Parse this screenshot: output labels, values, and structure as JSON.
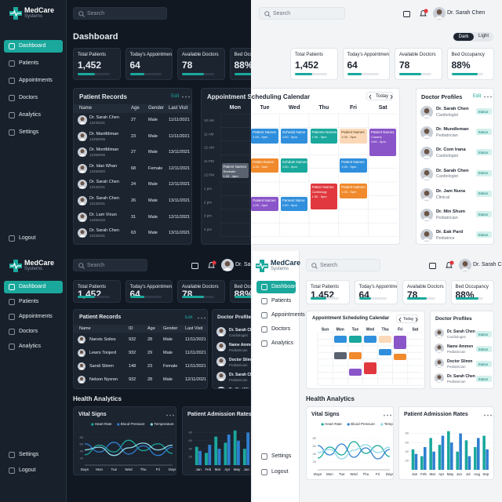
{
  "brand": {
    "name": "MedCare",
    "subtitle": "Systems"
  },
  "search_placeholder": "Search",
  "user": "Dr. Sarah Chen",
  "nav": [
    "Dashboard",
    "Patients",
    "Appointments",
    "Doctors",
    "Analytics"
  ],
  "settings": "Settings",
  "logout": "Logout",
  "theme_toggle": [
    "Dark",
    "Light"
  ],
  "title": "Dashboard",
  "stats": [
    {
      "label": "Total Patients",
      "value": "1,452",
      "progress": 55
    },
    {
      "label": "Today's Appointments",
      "value": "64",
      "progress": 45
    },
    {
      "label": "Available Doctors",
      "value": "78",
      "progress": 70
    },
    {
      "label": "Bed Occupancy",
      "value": "88%",
      "progress": 82
    }
  ],
  "patient_records": {
    "title": "Patient Records",
    "edit": "Edit",
    "columns": [
      "Name",
      "Age",
      "Gender",
      "Last Visit"
    ],
    "rows": [
      {
        "name": "Dr. Sarah Chen",
        "id": "12240231",
        "age": "27",
        "gender": "Male",
        "last_visit": "11/11/2021"
      },
      {
        "name": "Dr. Mantfdiman",
        "id": "12250036",
        "age": "23",
        "gender": "Male",
        "last_visit": "11/11/2021"
      },
      {
        "name": "Dr. Montfdiman",
        "id": "12250036",
        "age": "27",
        "gender": "Male",
        "last_visit": "13/11/2021"
      },
      {
        "name": "Dr. Idan Whan",
        "id": "12256820",
        "age": "68",
        "gender": "Female",
        "last_visit": "12/11/2021"
      },
      {
        "name": "Dr. Sarah Chen",
        "id": "12240231",
        "age": "24",
        "gender": "Male",
        "last_visit": "12/11/2021"
      },
      {
        "name": "Dr. Sarah Chen",
        "id": "12240231",
        "age": "26",
        "gender": "Male",
        "last_visit": "13/11/2021"
      },
      {
        "name": "Dr. Lam Vinun",
        "id": "12250416",
        "age": "31",
        "gender": "Male",
        "last_visit": "12/11/2021"
      },
      {
        "name": "Dr. Sarah Chen",
        "id": "12240231",
        "age": "63",
        "gender": "Male",
        "last_visit": "13/11/2021"
      }
    ]
  },
  "patient_records_compact": {
    "title": "Patient Records",
    "edit": "Edit",
    "columns": [
      "Name",
      "ID",
      "Age",
      "Gender",
      "Last Visit"
    ],
    "rows": [
      [
        "Nanxis Soites",
        "932",
        "28",
        "Male",
        "11/11/2021"
      ],
      [
        "Lewrs Tonjerd",
        "932",
        "29",
        "Male",
        "11/11/2021"
      ],
      [
        "Sandi Slimm",
        "148",
        "23",
        "Female",
        "11/11/2021"
      ],
      [
        "Nelson Nyxren",
        "932",
        "28",
        "Male",
        "12/11/2021"
      ]
    ]
  },
  "calendar": {
    "title": "Appointment Scheduling Calendar",
    "today": "Today",
    "days": [
      "Mon",
      "Tue",
      "Wed",
      "Thu",
      "Fri",
      "Sat"
    ],
    "times": [
      "10 AM",
      "11 AM",
      "12 AM",
      "11 PM",
      "12 PM",
      "1 pm",
      "2 pm",
      "3 pm",
      "4 pm"
    ],
    "events": [
      {
        "day": 0,
        "slot": 3.6,
        "span": 1.1,
        "color": "#5a6270",
        "name": "Patient Names",
        "detail": "Reebstie",
        "time": "1:00 - 4pm"
      },
      {
        "day": 1,
        "slot": 1.1,
        "span": 1.1,
        "color": "#2f8fdc",
        "name": "Pattent Names",
        "time": "1:00 - 5pm"
      },
      {
        "day": 1,
        "slot": 3.3,
        "span": 1,
        "color": "#f08a2c",
        "name": "Patien Nanes",
        "time": "1:00 - 5pm"
      },
      {
        "day": 1,
        "slot": 6.1,
        "span": 1,
        "color": "#8a55c9",
        "name": "Patient Names",
        "time": "1:00 - 5pm"
      },
      {
        "day": 2,
        "slot": 1.1,
        "span": 1.1,
        "color": "#2f8fdc",
        "name": "Schedul Name",
        "time": "1:00 - 5pm"
      },
      {
        "day": 2,
        "slot": 3.3,
        "span": 1,
        "color": "#1aa89c",
        "name": "Schdule Names",
        "time": "1:00 - 5pm"
      },
      {
        "day": 2,
        "slot": 6.1,
        "span": 1,
        "color": "#2f8fdc",
        "name": "Pament Name",
        "time": "1:00 - 5pm"
      },
      {
        "day": 3,
        "slot": 1.1,
        "span": 1.1,
        "color": "#1aa89c",
        "name": "Patients Names",
        "time": "1:00 - 5pm"
      },
      {
        "day": 3,
        "slot": 5.1,
        "span": 1.9,
        "color": "#e0383e",
        "name": "Patisn Names",
        "detail": "Cardiology",
        "time": "1:00 - 5pm"
      },
      {
        "day": 4,
        "slot": 1.1,
        "span": 1.1,
        "color": "#fbd9b8",
        "name": "Patient Names",
        "time": "1:00 - 5pm"
      },
      {
        "day": 4,
        "slot": 3.3,
        "span": 1,
        "color": "#2f8fdc",
        "name": "Patient Names",
        "time": "1:00 - 5pm"
      },
      {
        "day": 4,
        "slot": 5.1,
        "span": 1.1,
        "color": "#f08a2c",
        "name": "Patient Nalmen",
        "time": "1:00 - 5pm"
      },
      {
        "day": 5,
        "slot": 1.1,
        "span": 2,
        "color": "#8a55c9",
        "name": "Patient Names",
        "detail": "Cunans",
        "time": "1:00 - 5pm"
      }
    ]
  },
  "calendar_compact": {
    "title": "Appointment Scheduling Calendar",
    "today": "Today",
    "days": [
      "Sun",
      "Mon",
      "Tue",
      "Wed",
      "Thu",
      "Fri",
      "Sat"
    ],
    "events": [
      {
        "day": 1,
        "slot": 0.5,
        "span": 1,
        "color": "#2f8fdc"
      },
      {
        "day": 2,
        "slot": 0.5,
        "span": 1,
        "color": "#1aa89c"
      },
      {
        "day": 3,
        "slot": 0.5,
        "span": 1,
        "color": "#2f8fdc"
      },
      {
        "day": 4,
        "slot": 0.5,
        "span": 1,
        "color": "#fbd9b8"
      },
      {
        "day": 5,
        "slot": 0.5,
        "span": 2,
        "color": "#8a55c9"
      },
      {
        "day": 1,
        "slot": 3,
        "span": 1,
        "color": "#5a6270"
      },
      {
        "day": 2,
        "slot": 3,
        "span": 1,
        "color": "#f08a2c"
      },
      {
        "day": 4,
        "slot": 2.5,
        "span": 1,
        "color": "#2f8fdc"
      },
      {
        "day": 3,
        "slot": 4.5,
        "span": 1.8,
        "color": "#e0383e"
      },
      {
        "day": 5,
        "slot": 3.2,
        "span": 1,
        "color": "#f08a2c"
      },
      {
        "day": 2,
        "slot": 5.5,
        "span": 1,
        "color": "#8a55c9"
      }
    ]
  },
  "doctor_profiles": {
    "title": "Doctor Profiles",
    "edit": "Edit",
    "status": "Status",
    "doctors": [
      {
        "name": "Dr. Sarah Chen",
        "specialty": "Cardiologist"
      },
      {
        "name": "Dr. Mundleman",
        "specialty": "Pediatrician"
      },
      {
        "name": "Dr. Com Irana",
        "specialty": "Cardiologist"
      },
      {
        "name": "Dr. Sarah Chen",
        "specialty": "Cardiologist"
      },
      {
        "name": "Dr. Jam Nuna",
        "specialty": "Clinical"
      },
      {
        "name": "Dr. Min Shum",
        "specialty": "Pediatrician"
      },
      {
        "name": "Dr. Eak Pard",
        "specialty": "Pediatrice"
      }
    ]
  },
  "doctor_profiles_compact": {
    "title": "Doctor Profiles",
    "status": "Status",
    "doctors": [
      {
        "name": "Dr. Sarah Chen",
        "specialty": "Cardiologist"
      },
      {
        "name": "Name Ammen",
        "specialty": "Pediatrician"
      },
      {
        "name": "Doctor Slimm",
        "specialty": "Pediatrician"
      },
      {
        "name": "Dr. Sarah Chen",
        "specialty": "Pediatrician"
      },
      {
        "name": "Dr. Sin Wiben",
        "specialty": "Pediatrician"
      }
    ]
  },
  "health_analytics": {
    "title": "Health Analytics",
    "vital_signs": {
      "type": "line",
      "title": "Vital Signs",
      "categories": [
        "Days",
        "Mon",
        "Tue",
        "Wed",
        "Thu",
        "Fri",
        "Days"
      ],
      "ylim": [
        0,
        100
      ],
      "yticks": [
        20,
        40,
        60,
        80
      ],
      "series": [
        {
          "name": "Heart Rate",
          "color": "#1aa89c",
          "values": [
            30,
            58,
            38,
            72,
            42,
            62,
            34
          ]
        },
        {
          "name": "Blood Pressure",
          "color": "#2f7fd1",
          "values": [
            62,
            38,
            66,
            32,
            56,
            28,
            52
          ]
        },
        {
          "name": "Temperature",
          "color": "#8fd8e8",
          "values": [
            44,
            52,
            28,
            50,
            64,
            44,
            58
          ]
        }
      ]
    },
    "admissions": {
      "type": "bar",
      "title": "Patient Admission Rates",
      "categories": [
        "Jan",
        "Feb",
        "Mar",
        "Apr",
        "May",
        "Jun",
        "Jul",
        "Aug",
        "Sep"
      ],
      "ylim": [
        0,
        100
      ],
      "yticks": [
        20,
        40,
        60,
        80
      ],
      "series": [
        {
          "color": "#1aa89c",
          "values": [
            45,
            30,
            70,
            55,
            85,
            40,
            65,
            50,
            75
          ]
        },
        {
          "color": "#2f7fd1",
          "values": [
            35,
            50,
            40,
            75,
            60,
            80,
            30,
            70,
            45
          ]
        }
      ]
    }
  }
}
